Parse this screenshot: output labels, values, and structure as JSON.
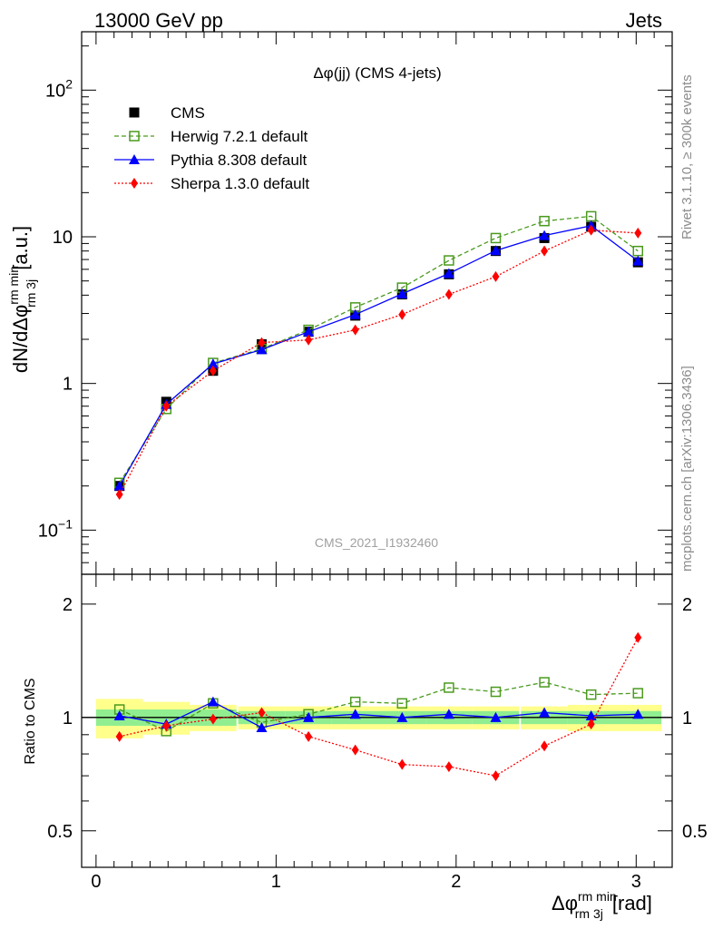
{
  "header": {
    "left": "13000 GeV pp",
    "right": "Jets"
  },
  "side_labels": {
    "rivet": "Rivet 3.1.10, ≥ 300k events",
    "mcplots": "mcplots.cern.ch [arXiv:1306.3436]"
  },
  "watermark": "CMS_2021_I1932460",
  "chart_data": [
    {
      "type": "line",
      "scale": "log",
      "title": "Δφ(jj) (CMS 4-jets)",
      "ylabel": "dN/dΔφ_rm 3j^rm min [a.u.]",
      "ylim": [
        0.05,
        250
      ],
      "yticks": [
        {
          "value": 0.1,
          "base": "10",
          "exp": "−1"
        },
        {
          "value": 1,
          "base": "1",
          "exp": ""
        },
        {
          "value": 10,
          "base": "10",
          "exp": ""
        },
        {
          "value": 100,
          "base": "10",
          "exp": "2"
        }
      ],
      "legend_position": "top-left",
      "x": [
        0.13,
        0.39,
        0.65,
        0.92,
        1.18,
        1.44,
        1.7,
        1.96,
        2.22,
        2.49,
        2.75,
        3.01
      ],
      "series": [
        {
          "name": "CMS",
          "color": "#000000",
          "marker": "square",
          "line": "none",
          "values": [
            0.2,
            0.75,
            1.22,
            1.85,
            2.25,
            2.9,
            4.05,
            5.55,
            8.0,
            9.8,
            11.7,
            6.7
          ]
        },
        {
          "name": "Herwig 7.2.1 default",
          "color": "#4a9a1e",
          "marker": "open-square",
          "line": "dashed",
          "values": [
            0.21,
            0.67,
            1.38,
            1.72,
            2.32,
            3.3,
            4.5,
            6.9,
            9.8,
            12.8,
            13.8,
            8.0
          ]
        },
        {
          "name": "Pythia 8.308 default",
          "color": "#0000ff",
          "marker": "triangle",
          "line": "solid",
          "values": [
            0.2,
            0.72,
            1.36,
            1.7,
            2.25,
            2.95,
            4.08,
            5.62,
            8.05,
            10.2,
            11.9,
            6.85
          ]
        },
        {
          "name": "Sherpa 1.3.0 default",
          "color": "#ff0000",
          "marker": "diamond",
          "line": "dotted",
          "values": [
            0.175,
            0.7,
            1.22,
            1.9,
            1.98,
            2.32,
            2.95,
            4.05,
            5.35,
            8.0,
            11.1,
            10.6
          ]
        }
      ]
    },
    {
      "type": "line",
      "scale": "log",
      "ylabel": "Ratio to CMS",
      "xlabel": "Δφ_rm 3j^rm min [rad]",
      "xlim": [
        -0.08,
        3.2
      ],
      "xticks": [
        "0",
        "1",
        "2",
        "3"
      ],
      "ylim": [
        0.4,
        2.4
      ],
      "yticks": [
        "0.5",
        "1",
        "2"
      ],
      "x": [
        0.13,
        0.39,
        0.65,
        0.92,
        1.18,
        1.44,
        1.7,
        1.96,
        2.22,
        2.49,
        2.75,
        3.01
      ],
      "bands": {
        "stat": {
          "color": "#90ee90",
          "lo": [
            0.95,
            0.95,
            0.95,
            0.96,
            0.96,
            0.96,
            0.96,
            0.96,
            0.96,
            0.96,
            0.96,
            0.96
          ],
          "hi": [
            1.05,
            1.05,
            1.05,
            1.04,
            1.04,
            1.04,
            1.04,
            1.04,
            1.04,
            1.04,
            1.04,
            1.04
          ]
        },
        "total": {
          "color": "#ffff8c",
          "lo": [
            0.88,
            0.9,
            0.92,
            0.93,
            0.93,
            0.93,
            0.93,
            0.93,
            0.93,
            0.93,
            0.92,
            0.92
          ],
          "hi": [
            1.12,
            1.1,
            1.08,
            1.07,
            1.07,
            1.07,
            1.07,
            1.07,
            1.07,
            1.07,
            1.08,
            1.08
          ]
        }
      },
      "series": [
        {
          "name": "Herwig 7.2.1 default",
          "color": "#4a9a1e",
          "marker": "open-square",
          "line": "dashed",
          "values": [
            1.05,
            0.92,
            1.09,
            0.97,
            1.02,
            1.1,
            1.09,
            1.2,
            1.17,
            1.24,
            1.15,
            1.16
          ]
        },
        {
          "name": "Pythia 8.308 default",
          "color": "#0000ff",
          "marker": "triangle",
          "line": "solid",
          "values": [
            1.01,
            0.96,
            1.1,
            0.94,
            1.0,
            1.02,
            1.0,
            1.02,
            1.0,
            1.03,
            1.01,
            1.02
          ]
        },
        {
          "name": "Sherpa 1.3.0 default",
          "color": "#ff0000",
          "marker": "diamond",
          "line": "dotted",
          "values": [
            0.89,
            0.95,
            0.99,
            1.03,
            0.89,
            0.82,
            0.75,
            0.74,
            0.7,
            0.84,
            0.96,
            1.63
          ]
        }
      ]
    }
  ]
}
